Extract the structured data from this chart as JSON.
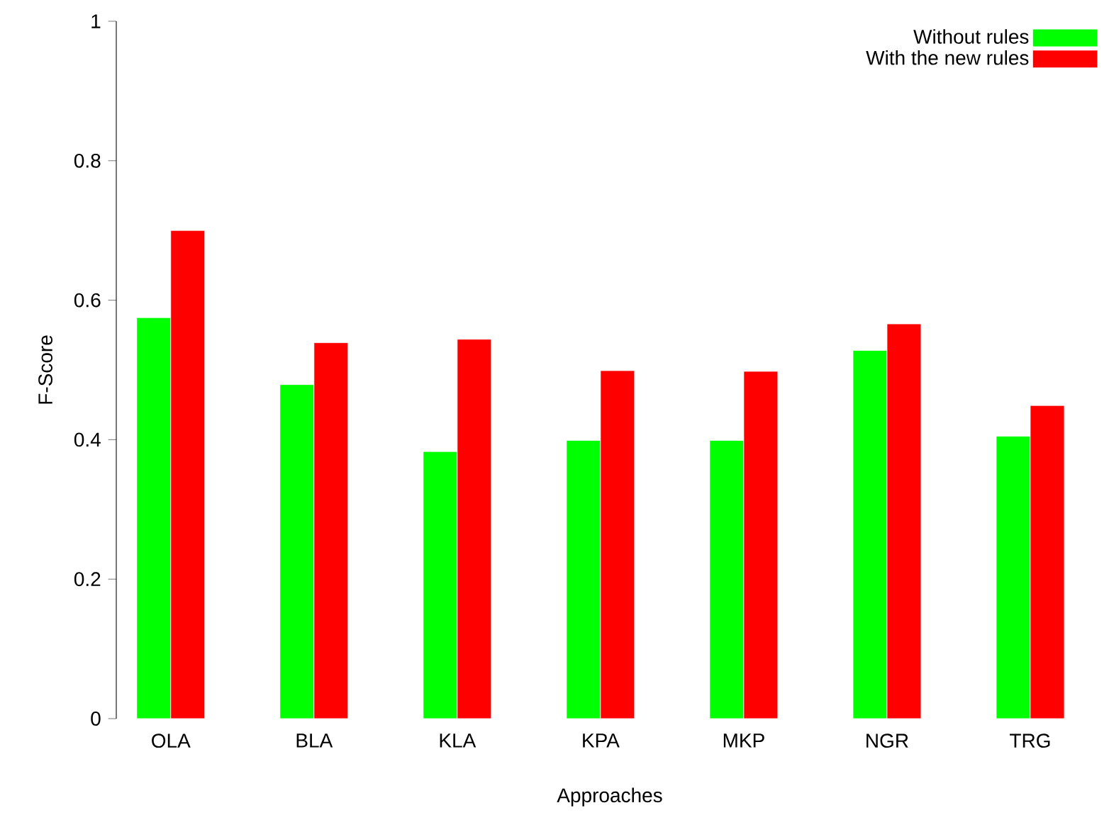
{
  "chart_data": {
    "type": "bar",
    "xlabel": "Approaches",
    "ylabel": "F-Score",
    "categories": [
      "OLA",
      "BLA",
      "KLA",
      "KPA",
      "MKP",
      "NGR",
      "TRG"
    ],
    "series": [
      {
        "name": "Without rules",
        "color": "#00ff00",
        "values": [
          0.575,
          0.479,
          0.383,
          0.399,
          0.399,
          0.528,
          0.405
        ]
      },
      {
        "name": "With the new rules",
        "color": "#ff0000",
        "values": [
          0.7,
          0.539,
          0.544,
          0.499,
          0.498,
          0.566,
          0.449
        ]
      }
    ],
    "ylim": [
      0,
      1
    ],
    "yticks": [
      0,
      0.2,
      0.4,
      0.6,
      0.8,
      1
    ],
    "grid": false,
    "legend": "top right"
  }
}
